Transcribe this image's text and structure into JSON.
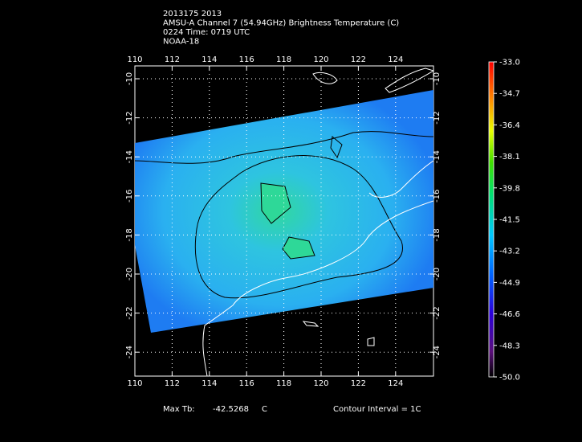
{
  "header": {
    "lines": [
      "2013175 2013",
      "AMSU-A Channel 7 (54.94GHz) Brightness Temperature (C)",
      "0224 Time: 0719 UTC",
      "NOAA-18"
    ]
  },
  "map": {
    "lon_ticks": [
      110,
      112,
      114,
      116,
      118,
      120,
      122,
      124
    ],
    "lat_ticks": [
      -10,
      -12,
      -14,
      -16,
      -18,
      -20,
      -22,
      -24
    ]
  },
  "colorbar": {
    "labels": [
      "-33.0",
      "-34.7",
      "-36.4",
      "-38.1",
      "-39.8",
      "-41.5",
      "-43.2",
      "-44.9",
      "-46.6",
      "-48.3",
      "-50.0"
    ]
  },
  "footer": {
    "max_label": "Max Tb:",
    "max_value": "-42.5268",
    "max_unit": "C",
    "contour": "Contour Interval = 1C"
  }
}
